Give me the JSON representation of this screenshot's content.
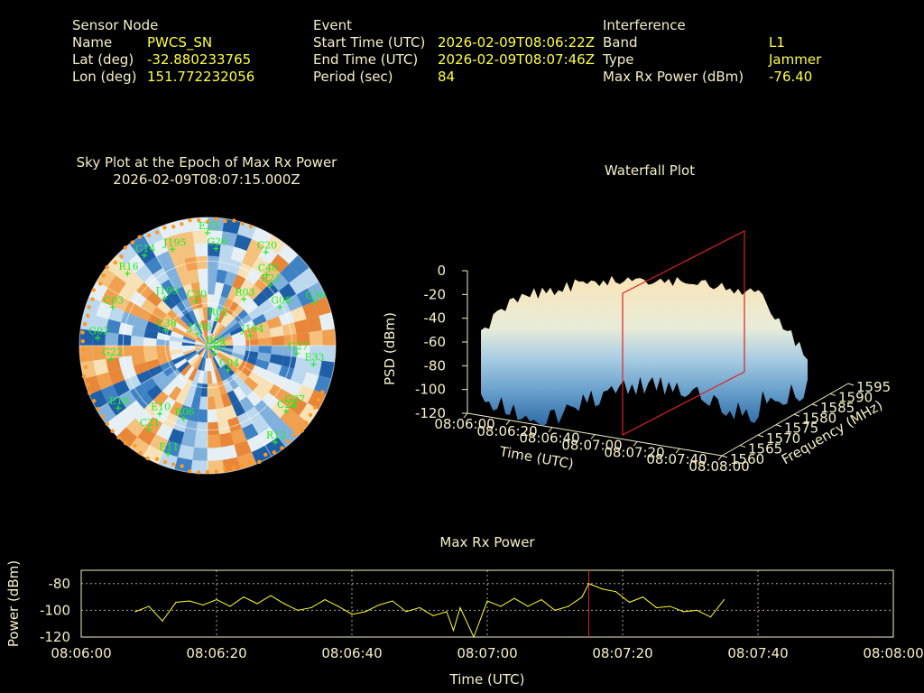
{
  "info": {
    "sensor": {
      "heading": "Sensor Node",
      "name_label": "Name",
      "name_value": "PWCS_SN",
      "lat_label": "Lat (deg)",
      "lat_value": "-32.880233765",
      "lon_label": "Lon (deg)",
      "lon_value": "151.772232056"
    },
    "event": {
      "heading": "Event",
      "start_label": "Start Time (UTC)",
      "start_value": "2026-02-09T08:06:22Z",
      "end_label": "End Time (UTC)",
      "end_value": "2026-02-09T08:07:46Z",
      "period_label": "Period (sec)",
      "period_value": "84"
    },
    "interference": {
      "heading": "Interference",
      "band_label": "Band",
      "band_value": "L1",
      "type_label": "Type",
      "type_value": "Jammer",
      "power_label": "Max Rx Power (dBm)",
      "power_value": "-76.40"
    }
  },
  "colors": {
    "text": "#f5f0c8",
    "value": "#ffff44",
    "satellite": "#22ee22",
    "marker": "#dd2222",
    "trace": "#ffff33",
    "edge_dots": "#ff9922"
  },
  "chart_data": [
    {
      "type": "scatter",
      "title": "Sky Plot at the Epoch of Max Rx Power",
      "subtitle": "2026-02-09T08:07:15.000Z",
      "projection": "polar",
      "satellites": [
        {
          "id": "E23",
          "az": 0,
          "el": 88
        },
        {
          "id": "J195",
          "az": 340,
          "el": 80
        },
        {
          "id": "G26",
          "az": 5,
          "el": 76
        },
        {
          "id": "C20",
          "az": 32,
          "el": 86
        },
        {
          "id": "C48",
          "az": 40,
          "el": 72
        },
        {
          "id": "E21",
          "az": 46,
          "el": 68
        },
        {
          "id": "C14",
          "az": 325,
          "el": 86
        },
        {
          "id": "R16",
          "az": 312,
          "el": 84
        },
        {
          "id": "R03",
          "az": 38,
          "el": 46
        },
        {
          "id": "G30",
          "az": 68,
          "el": 90
        },
        {
          "id": "G08",
          "az": 62,
          "el": 64
        },
        {
          "id": "C03",
          "az": 292,
          "el": 80
        },
        {
          "id": "J199",
          "az": 318,
          "el": 50
        },
        {
          "id": "J196",
          "az": 320,
          "el": 12
        },
        {
          "id": "C38",
          "az": 290,
          "el": 35
        },
        {
          "id": "C30",
          "az": 345,
          "el": 36
        },
        {
          "id": "R02",
          "az": 20,
          "el": 22
        },
        {
          "id": "G02",
          "az": 274,
          "el": 86
        },
        {
          "id": "J194",
          "az": 77,
          "el": 34
        },
        {
          "id": "G27",
          "az": 95,
          "el": 70
        },
        {
          "id": "E33",
          "az": 100,
          "el": 84
        },
        {
          "id": "G22",
          "az": 262,
          "el": 76
        },
        {
          "id": "R04",
          "az": 105,
          "el": 6
        },
        {
          "id": "G09",
          "az": 140,
          "el": 8
        },
        {
          "id": "C04",
          "az": 140,
          "el": 25
        },
        {
          "id": "G07",
          "az": 125,
          "el": 82
        },
        {
          "id": "C23",
          "az": 130,
          "el": 80
        },
        {
          "id": "R12",
          "az": 145,
          "el": 92
        },
        {
          "id": "E18",
          "az": 235,
          "el": 85
        },
        {
          "id": "E10",
          "az": 215,
          "el": 65
        },
        {
          "id": "C21",
          "az": 215,
          "el": 80
        },
        {
          "id": "R06",
          "az": 198,
          "el": 60
        },
        {
          "id": "E11",
          "az": 200,
          "el": 90
        }
      ]
    },
    {
      "type": "area",
      "title": "Waterfall Plot",
      "xlabel": "Time (UTC)",
      "ylabel": "Frequency (MHz)",
      "zlabel": "PSD (dBm)",
      "time_ticks": [
        "08:06:00",
        "08:06:20",
        "08:06:40",
        "08:07:00",
        "08:07:20",
        "08:07:40",
        "08:08:00"
      ],
      "freq_ticks": [
        "1560",
        "1565",
        "1570",
        "1575",
        "1580",
        "1585",
        "1590",
        "1595"
      ],
      "psd_ticks": [
        "-120",
        "-100",
        "-80",
        "-60",
        "-40",
        "-20",
        "0"
      ],
      "zlim": [
        -120,
        0
      ],
      "peak_time": "08:07:15"
    },
    {
      "type": "line",
      "title": "Max Rx Power",
      "xlabel": "Time (UTC)",
      "ylabel": "Power (dBm)",
      "xlim": [
        "08:06:00",
        "08:08:00"
      ],
      "ylim": [
        -120,
        -70
      ],
      "xticks": [
        "08:06:00",
        "08:06:20",
        "08:06:40",
        "08:07:00",
        "08:07:20",
        "08:07:40",
        "08:08:00"
      ],
      "yticks": [
        "-80",
        "-100",
        "-120"
      ],
      "marker_time": "08:07:15",
      "x": [
        "08:06:08",
        "08:06:10",
        "08:06:12",
        "08:06:14",
        "08:06:16",
        "08:06:18",
        "08:06:20",
        "08:06:22",
        "08:06:24",
        "08:06:26",
        "08:06:28",
        "08:06:30",
        "08:06:32",
        "08:06:34",
        "08:06:36",
        "08:06:38",
        "08:06:40",
        "08:06:42",
        "08:06:44",
        "08:06:46",
        "08:06:48",
        "08:06:50",
        "08:06:52",
        "08:06:54",
        "08:06:55",
        "08:06:56",
        "08:06:58",
        "08:07:00",
        "08:07:02",
        "08:07:04",
        "08:07:06",
        "08:07:08",
        "08:07:10",
        "08:07:12",
        "08:07:14",
        "08:07:15",
        "08:07:17",
        "08:07:19",
        "08:07:21",
        "08:07:23",
        "08:07:25",
        "08:07:27",
        "08:07:29",
        "08:07:31",
        "08:07:33",
        "08:07:35"
      ],
      "values": [
        -101,
        -97,
        -108,
        -94,
        -93,
        -96,
        -92,
        -97,
        -90,
        -95,
        -89,
        -95,
        -100,
        -98,
        -92,
        -97,
        -103,
        -101,
        -96,
        -93,
        -101,
        -98,
        -104,
        -101,
        -115,
        -98,
        -120,
        -93,
        -97,
        -91,
        -97,
        -92,
        -100,
        -97,
        -90,
        -80,
        -84,
        -86,
        -94,
        -90,
        -98,
        -97,
        -101,
        -100,
        -105,
        -92
      ]
    }
  ]
}
